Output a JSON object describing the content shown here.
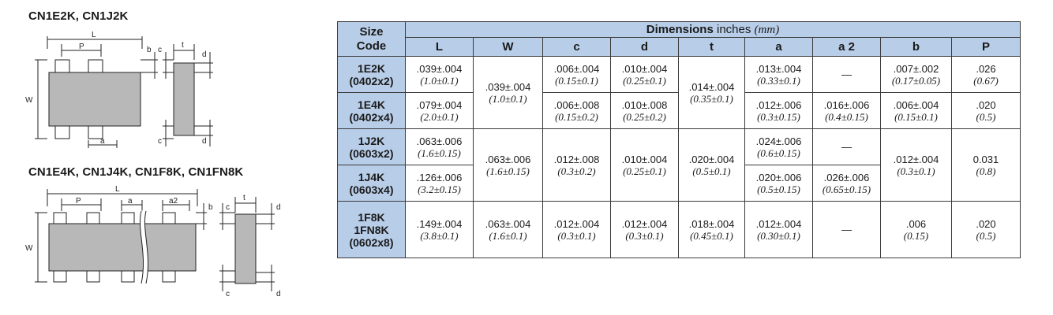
{
  "drawings": {
    "top": {
      "title": "CN1E2K, CN1J2K",
      "labels": {
        "L": "L",
        "P": "P",
        "b": "b",
        "c": "c",
        "t": "t",
        "d": "d",
        "W": "W",
        "a": "a"
      }
    },
    "bottom": {
      "title": "CN1E4K, CN1J4K, CN1F8K, CN1FN8K",
      "labels": {
        "L": "L",
        "P": "P",
        "a": "a",
        "a2": "a2",
        "b": "b",
        "c": "c",
        "t": "t",
        "d": "d",
        "W": "W"
      }
    }
  },
  "table": {
    "size_code_line1": "Size",
    "size_code_line2": "Code",
    "dimensions_word": "Dimensions",
    "dimensions_unit": "inches",
    "dimensions_mm": "(mm)",
    "columns": [
      "L",
      "W",
      "c",
      "d",
      "t",
      "a",
      "a 2",
      "b",
      "P"
    ],
    "dash": "—",
    "rows": {
      "r1": {
        "code1": "1E2K",
        "code2": "(0402x2)",
        "L": ".039±.004",
        "L_mm": "(1.0±0.1)",
        "c": ".006±.004",
        "c_mm": "(0.15±0.1)",
        "d": ".010±.004",
        "d_mm": "(0.25±0.1)",
        "a": ".013±.004",
        "a_mm": "(0.33±0.1)",
        "b": ".007±.002",
        "b_mm": "(0.17±0.05)",
        "P": ".026",
        "P_mm": "(0.67)"
      },
      "r12": {
        "W": ".039±.004",
        "W_mm": "(1.0±0.1)",
        "t": ".014±.004",
        "t_mm": "(0.35±0.1)"
      },
      "r2": {
        "code1": "1E4K",
        "code2": "(0402x4)",
        "L": ".079±.004",
        "L_mm": "(2.0±0.1)",
        "c": ".006±.008",
        "c_mm": "(0.15±0.2)",
        "d": ".010±.008",
        "d_mm": "(0.25±0.2)",
        "a": ".012±.006",
        "a_mm": "(0.3±0.15)",
        "a2": ".016±.006",
        "a2_mm": "(0.4±0.15)",
        "b": ".006±.004",
        "b_mm": "(0.15±0.1)",
        "P": ".020",
        "P_mm": "(0.5)"
      },
      "r3": {
        "code1": "1J2K",
        "code2": "(0603x2)",
        "L": ".063±.006",
        "L_mm": "(1.6±0.15)",
        "a": ".024±.006",
        "a_mm": "(0.6±0.15)"
      },
      "r34": {
        "W": ".063±.006",
        "W_mm": "(1.6±0.15)",
        "c": ".012±.008",
        "c_mm": "(0.3±0.2)",
        "d": ".010±.004",
        "d_mm": "(0.25±0.1)",
        "t": ".020±.004",
        "t_mm": "(0.5±0.1)",
        "b": ".012±.004",
        "b_mm": "(0.3±0.1)",
        "P": "0.031",
        "P_mm": "(0.8)"
      },
      "r4": {
        "code1": "1J4K",
        "code2": "(0603x4)",
        "L": ".126±.006",
        "L_mm": "(3.2±0.15)",
        "a": ".020±.006",
        "a_mm": "(0.5±0.15)",
        "a2": ".026±.006",
        "a2_mm": "(0.65±0.15)"
      },
      "r5": {
        "code1": "1F8K",
        "code2": "1FN8K",
        "code3": "(0602x8)",
        "L": ".149±.004",
        "L_mm": "(3.8±0.1)",
        "W": ".063±.004",
        "W_mm": "(1.6±0.1)",
        "c": ".012±.004",
        "c_mm": "(0.3±0.1)",
        "d": ".012±.004",
        "d_mm": "(0.3±0.1)",
        "t": ".018±.004",
        "t_mm": "(0.45±0.1)",
        "a": ".012±.004",
        "a_mm": "(0.30±0.1)",
        "b": ".006",
        "b_mm": "(0.15)",
        "P": ".020",
        "P_mm": "(0.5)"
      }
    }
  }
}
